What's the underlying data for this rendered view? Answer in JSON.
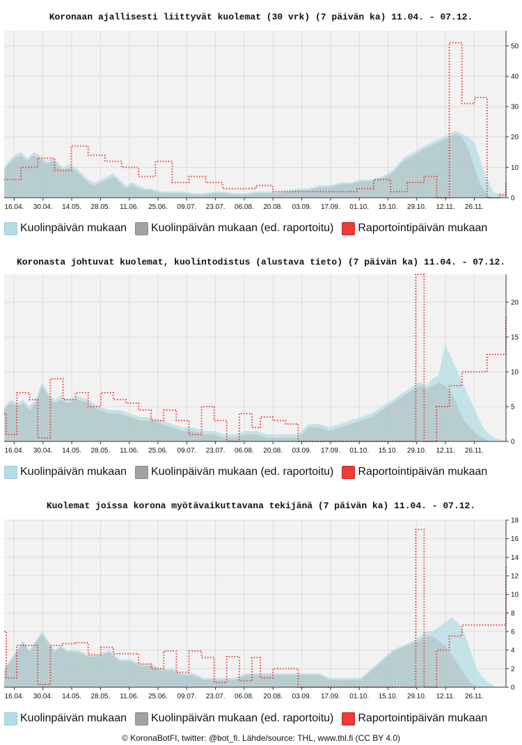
{
  "legend": {
    "series_a": "Kuolinpäivän mukaan",
    "series_b": "Kuolinpäivän mukaan (ed. raportoitu)",
    "series_c": "Raportointipäivän mukaan"
  },
  "colors": {
    "series_a": "#b3dde6",
    "series_b": "#a2a2a2",
    "series_c": "#ef3a35",
    "plot_bg": "#f2f2f2",
    "grid": "#dddddd"
  },
  "footer": "© KoronaBotFI, twitter: @bot_fi. Lähde/source: THL, www.thl.fi (CC BY 4.0)",
  "chart_data": [
    {
      "type": "area",
      "title": "Koronaan ajallisesti liittyvät kuolemat (30 vrk) (7 päivän ka) 11.04. - 07.12.",
      "x_ticks": [
        "16.04.",
        "30.04.",
        "14.05.",
        "28.05.",
        "11.06.",
        "25.06.",
        "09.07.",
        "23.07.",
        "06.08.",
        "20.08.",
        "03.09.",
        "17.09.",
        "01.10.",
        "15.10.",
        "29.10.",
        "12.11.",
        "26.11."
      ],
      "y_ticks": [
        0,
        10,
        20,
        30,
        40,
        50
      ],
      "ylim": [
        0,
        55
      ],
      "series": [
        {
          "name": "Kuolinpäivän mukaan",
          "style": "area",
          "x": [
            0,
            2,
            5,
            8,
            11,
            14,
            17,
            20,
            23,
            25,
            28,
            31,
            34,
            37,
            40,
            43,
            46,
            49,
            52,
            55,
            58,
            61,
            64,
            67,
            70,
            75,
            80,
            85,
            90,
            95,
            100,
            105,
            110,
            115,
            120,
            125,
            130,
            135,
            140,
            145,
            150,
            155,
            160,
            165,
            170,
            175,
            180,
            185,
            190,
            195,
            200,
            203,
            206,
            209,
            212,
            215,
            218,
            221,
            224,
            227,
            230,
            233,
            236,
            239
          ],
          "y": [
            10,
            12,
            14,
            15,
            13,
            15,
            14,
            12,
            13,
            12,
            10,
            11,
            10,
            8,
            6,
            5,
            6,
            7,
            8,
            6,
            4,
            5,
            4,
            3,
            3,
            2,
            2,
            2,
            1.5,
            1.5,
            2,
            2,
            1.5,
            1.5,
            2,
            2,
            2,
            2.5,
            3,
            3,
            4,
            4,
            5,
            5,
            6,
            6,
            7,
            9,
            13,
            15,
            17,
            18,
            19,
            20,
            21,
            22,
            21,
            20,
            18,
            12,
            6,
            2,
            1,
            1
          ]
        },
        {
          "name": "Kuolinpäivän mukaan (ed. raportoitu)",
          "style": "area",
          "x": [
            0,
            2,
            5,
            8,
            11,
            14,
            17,
            20,
            23,
            25,
            28,
            31,
            34,
            37,
            40,
            43,
            46,
            49,
            52,
            55,
            58,
            61,
            64,
            67,
            70,
            75,
            80,
            85,
            90,
            95,
            100,
            105,
            110,
            115,
            120,
            125,
            130,
            135,
            140,
            145,
            150,
            155,
            160,
            165,
            170,
            175,
            180,
            185,
            190,
            195,
            200,
            203,
            206,
            209,
            212,
            215,
            218,
            221,
            224,
            227,
            230,
            233,
            236,
            239
          ],
          "y": [
            9,
            11,
            13,
            14,
            12,
            14,
            13,
            11,
            12,
            11,
            9,
            10,
            9,
            7,
            5,
            4,
            5,
            6,
            7,
            5,
            3,
            4,
            3,
            2.5,
            2.5,
            1.5,
            1.5,
            1.5,
            1,
            1,
            1.5,
            1.5,
            1,
            1,
            1.5,
            1.5,
            1.5,
            2,
            2.5,
            2.5,
            3.5,
            3.5,
            4.5,
            4.5,
            5.5,
            5.5,
            6.5,
            8,
            12,
            14,
            16,
            17,
            18,
            19,
            20,
            21,
            20,
            16,
            10,
            4,
            1,
            0,
            0,
            0
          ]
        },
        {
          "name": "Raportointipäivän mukaan",
          "style": "dotted-step",
          "x": [
            0,
            8,
            16,
            24,
            32,
            40,
            48,
            56,
            64,
            72,
            80,
            88,
            96,
            104,
            112,
            120,
            128,
            136,
            144,
            152,
            160,
            168,
            176,
            184,
            192,
            200,
            206,
            212,
            218,
            224,
            230,
            236,
            239
          ],
          "y": [
            6,
            10,
            13,
            9,
            17,
            14,
            12,
            10,
            7,
            12,
            5,
            7,
            5,
            3,
            3,
            4,
            2,
            2,
            2,
            2,
            2,
            3,
            6,
            2,
            5,
            7,
            0,
            51,
            31,
            33,
            0,
            1,
            5
          ]
        }
      ]
    },
    {
      "type": "area",
      "title": "Koronasta johtuvat kuolemat, kuolintodistus (alustava tieto) (7 päivän ka) 11.04. - 07.12.",
      "x_ticks": [
        "16.04.",
        "30.04.",
        "14.05.",
        "28.05.",
        "11.06.",
        "25.06.",
        "09.07.",
        "23.07.",
        "06.08.",
        "20.08.",
        "03.09.",
        "17.09.",
        "01.10.",
        "15.10.",
        "29.10.",
        "12.11.",
        "26.11."
      ],
      "y_ticks": [
        0,
        5,
        10,
        15,
        20
      ],
      "ylim": [
        0,
        24
      ],
      "series": [
        {
          "name": "Kuolinpäivän mukaan",
          "style": "area",
          "x": [
            0,
            3,
            6,
            9,
            12,
            15,
            18,
            21,
            24,
            27,
            30,
            35,
            40,
            45,
            50,
            55,
            60,
            65,
            70,
            75,
            80,
            85,
            90,
            95,
            100,
            105,
            110,
            115,
            120,
            125,
            130,
            135,
            140,
            145,
            150,
            155,
            160,
            165,
            170,
            175,
            180,
            185,
            190,
            195,
            198,
            201,
            204,
            207,
            210,
            213,
            216,
            219,
            222,
            225,
            228,
            231,
            234,
            239
          ],
          "y": [
            5,
            6,
            5.5,
            6,
            5,
            6,
            8.5,
            7,
            6,
            6.5,
            6,
            6.5,
            6,
            5,
            4.5,
            4.5,
            4,
            3.5,
            3.5,
            3,
            2.5,
            2,
            2,
            1.5,
            1.5,
            1,
            1,
            1.5,
            1.5,
            1,
            1,
            1,
            1,
            2.5,
            2.5,
            2,
            2.5,
            3,
            3.5,
            4,
            5,
            6,
            7,
            8,
            8.5,
            8,
            9,
            9.5,
            14,
            12,
            10,
            8,
            6,
            4,
            2,
            1,
            0.5,
            0
          ]
        },
        {
          "name": "Kuolinpäivän mukaan (ed. raportoitu)",
          "style": "area",
          "x": [
            0,
            3,
            6,
            9,
            12,
            15,
            18,
            21,
            24,
            27,
            30,
            35,
            40,
            45,
            50,
            55,
            60,
            65,
            70,
            75,
            80,
            85,
            90,
            95,
            100,
            105,
            110,
            115,
            120,
            125,
            130,
            135,
            140,
            145,
            150,
            155,
            160,
            165,
            170,
            175,
            180,
            185,
            190,
            195,
            198,
            201,
            204,
            207,
            210,
            213,
            216,
            219,
            222,
            225,
            228,
            231,
            234,
            239
          ],
          "y": [
            4.5,
            5.5,
            5,
            5.5,
            4.5,
            5.5,
            8,
            6.5,
            5.5,
            6,
            5.5,
            6,
            5.5,
            4.5,
            4,
            4,
            3.5,
            3,
            3,
            2.5,
            2,
            1.5,
            1.5,
            1,
            1,
            0.5,
            0.5,
            1,
            1,
            0.5,
            0.5,
            0.5,
            0.5,
            2,
            2,
            1.5,
            2,
            2.5,
            3,
            3.5,
            4.5,
            5.5,
            6.5,
            7.5,
            8,
            7.5,
            8,
            8.5,
            8,
            7,
            5,
            3,
            2,
            1,
            0.5,
            0,
            0,
            0
          ]
        },
        {
          "name": "Raportointipäivän mukaan",
          "style": "dotted-step",
          "x": [
            0,
            1,
            6,
            12,
            16,
            22,
            28,
            34,
            40,
            46,
            52,
            58,
            64,
            70,
            76,
            82,
            88,
            94,
            100,
            106,
            112,
            118,
            122,
            128,
            134,
            140,
            146,
            150,
            156,
            160,
            166,
            172,
            178,
            184,
            190,
            196,
            200,
            206,
            212,
            218,
            224,
            230,
            236,
            239
          ],
          "y": [
            4,
            1,
            7,
            6,
            0.5,
            9,
            6,
            7,
            5,
            7,
            6,
            5.5,
            4.5,
            3,
            4.5,
            3,
            1,
            5,
            3,
            0,
            4,
            2,
            3.5,
            3,
            2.5,
            0,
            0,
            0,
            0,
            0,
            0,
            0,
            0,
            0,
            0,
            24,
            0,
            5,
            8,
            10,
            10,
            12.5,
            12.5,
            18
          ]
        }
      ]
    },
    {
      "type": "area",
      "title": "Kuolemat joissa korona myötävaikuttavana tekijänä (7 päivän ka) 11.04. - 07.12.",
      "x_ticks": [
        "16.04.",
        "30.04.",
        "14.05.",
        "28.05.",
        "11.06.",
        "25.06.",
        "09.07.",
        "23.07.",
        "06.08.",
        "20.08.",
        "03.09.",
        "17.09.",
        "01.10.",
        "15.10.",
        "29.10.",
        "12.11.",
        "26.11."
      ],
      "y_ticks": [
        0,
        2,
        4,
        6,
        8,
        10,
        12,
        14,
        16,
        18
      ],
      "ylim": [
        0,
        18
      ],
      "series": [
        {
          "name": "Kuolinpäivän mukaan",
          "style": "area",
          "x": [
            0,
            3,
            6,
            9,
            12,
            15,
            18,
            21,
            24,
            27,
            30,
            35,
            40,
            45,
            50,
            55,
            60,
            65,
            70,
            75,
            80,
            85,
            90,
            95,
            100,
            105,
            110,
            115,
            120,
            125,
            130,
            135,
            140,
            145,
            150,
            155,
            160,
            165,
            170,
            175,
            180,
            185,
            190,
            195,
            198,
            201,
            204,
            207,
            210,
            213,
            216,
            219,
            222,
            225,
            228,
            231,
            234,
            239
          ],
          "y": [
            2,
            3,
            4,
            5,
            4,
            5,
            6,
            5,
            4,
            4.5,
            4,
            4,
            3.5,
            3.5,
            4,
            3,
            3,
            2.5,
            2.5,
            2,
            2,
            1.5,
            1.5,
            1,
            1,
            1,
            1,
            1.5,
            1.5,
            1.5,
            1.5,
            1.5,
            1.5,
            1.5,
            1.5,
            1,
            1,
            1,
            1,
            2,
            3,
            4,
            4.5,
            5,
            5.5,
            6,
            6,
            6.5,
            7,
            7.5,
            7,
            6,
            4,
            2,
            1,
            0.5,
            0,
            0
          ]
        },
        {
          "name": "Kuolinpäivän mukaan (ed. raportoitu)",
          "style": "area",
          "x": [
            0,
            3,
            6,
            9,
            12,
            15,
            18,
            21,
            24,
            27,
            30,
            35,
            40,
            45,
            50,
            55,
            60,
            65,
            70,
            75,
            80,
            85,
            90,
            95,
            100,
            105,
            110,
            115,
            120,
            125,
            130,
            135,
            140,
            145,
            150,
            155,
            160,
            165,
            170,
            175,
            180,
            185,
            190,
            195,
            198,
            201,
            204,
            207,
            210,
            213,
            216,
            219,
            222,
            225,
            228,
            231,
            234,
            239
          ],
          "y": [
            1.8,
            2.8,
            3.8,
            4.8,
            3.8,
            4.8,
            5.8,
            4.8,
            3.8,
            4.3,
            3.8,
            3.8,
            3.3,
            3.3,
            3.8,
            2.8,
            2.8,
            2.3,
            2.3,
            1.8,
            1.8,
            1.3,
            1.3,
            0.8,
            0.8,
            0.8,
            0.8,
            1.3,
            1.3,
            1.3,
            1.3,
            1.3,
            1.3,
            1.3,
            1.3,
            0.8,
            0.8,
            0.8,
            0.8,
            1.8,
            2.8,
            3.8,
            4.3,
            4.8,
            5,
            5.5,
            5.5,
            5,
            4.5,
            3.5,
            2.5,
            1.5,
            0.5,
            0,
            0,
            0,
            0,
            0
          ]
        },
        {
          "name": "Raportointipäivän mukaan",
          "style": "dotted-step",
          "x": [
            0,
            1,
            6,
            12,
            16,
            22,
            28,
            34,
            40,
            46,
            52,
            58,
            64,
            70,
            76,
            82,
            88,
            94,
            100,
            106,
            112,
            118,
            122,
            128,
            134,
            140,
            146,
            150,
            156,
            160,
            166,
            172,
            178,
            184,
            190,
            196,
            200,
            206,
            212,
            218,
            224,
            230,
            236,
            239
          ],
          "y": [
            6,
            1,
            4.5,
            4.5,
            0.3,
            4.5,
            4.7,
            4.8,
            3.5,
            4.3,
            3.6,
            3.6,
            2.5,
            2,
            3.9,
            1.6,
            3.9,
            3.2,
            0.5,
            3.3,
            0.7,
            3.2,
            1,
            2,
            2,
            0,
            0,
            0,
            0,
            0,
            0,
            0,
            0,
            0,
            0,
            17,
            0,
            4,
            5.5,
            6.7,
            6.7,
            6.7,
            6.7,
            13
          ]
        }
      ]
    }
  ]
}
